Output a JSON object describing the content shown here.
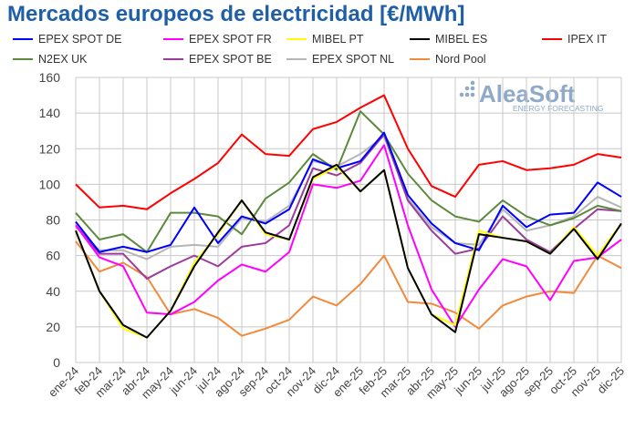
{
  "chart_data": {
    "type": "line",
    "title": "Mercados europeos de electricidad [€/MWh]",
    "watermark": "AleaSoft ENERGY FORECASTING",
    "ylim": [
      0,
      160
    ],
    "yticks": [
      0,
      20,
      40,
      60,
      80,
      100,
      120,
      140,
      160
    ],
    "grid": true,
    "legend_position": "top",
    "categories": [
      "ene-24",
      "feb-24",
      "mar-24",
      "abr-24",
      "may-24",
      "jun-24",
      "jul-24",
      "ago-24",
      "sep-24",
      "oct-24",
      "nov-24",
      "dic-24",
      "ene-25",
      "feb-25",
      "mar-25",
      "abr-25",
      "may-25",
      "jun-25",
      "jul-25",
      "ago-25",
      "sep-25",
      "oct-25",
      "nov-25",
      "dic-25"
    ],
    "series": [
      {
        "name": "EPEX SPOT DE",
        "color": "#0000ff",
        "values": [
          79,
          62,
          65,
          62,
          66,
          87,
          67,
          82,
          78,
          86,
          114,
          109,
          113,
          129,
          94,
          78,
          67,
          63,
          88,
          76,
          83,
          84,
          101,
          93
        ]
      },
      {
        "name": "EPEX SPOT FR",
        "color": "#ff00ff",
        "values": [
          77,
          59,
          54,
          28,
          27,
          34,
          46,
          55,
          51,
          62,
          100,
          98,
          102,
          122,
          77,
          41,
          20,
          41,
          58,
          54,
          35,
          57,
          59,
          69
        ]
      },
      {
        "name": "MIBEL PT",
        "color": "#ffff00",
        "values": [
          74,
          40,
          19,
          14,
          29,
          56,
          72,
          91,
          72,
          69,
          103,
          110,
          96,
          108,
          53,
          27,
          21,
          74,
          70,
          68,
          61,
          76,
          60,
          78
        ]
      },
      {
        "name": "MIBEL ES",
        "color": "#000000",
        "values": [
          74,
          40,
          21,
          14,
          29,
          54,
          73,
          91,
          73,
          69,
          104,
          111,
          96,
          108,
          53,
          27,
          17,
          72,
          70,
          68,
          61,
          75,
          58,
          78
        ]
      },
      {
        "name": "IPEX IT",
        "color": "#ff0000",
        "values": [
          100,
          87,
          88,
          86,
          95,
          103,
          112,
          128,
          117,
          116,
          131,
          135,
          143,
          150,
          120,
          99,
          93,
          111,
          113,
          108,
          109,
          111,
          117,
          115
        ]
      },
      {
        "name": "N2EX UK",
        "color": "#5b8a3c",
        "values": [
          84,
          69,
          72,
          62,
          84,
          84,
          82,
          72,
          92,
          101,
          117,
          108,
          141,
          128,
          106,
          91,
          82,
          79,
          91,
          82,
          77,
          81,
          88,
          85
        ]
      },
      {
        "name": "EPEX SPOT BE",
        "color": "#9b3b9b",
        "values": [
          77,
          61,
          61,
          47,
          54,
          60,
          54,
          65,
          67,
          77,
          109,
          105,
          112,
          128,
          91,
          74,
          61,
          64,
          82,
          69,
          62,
          75,
          86,
          85
        ]
      },
      {
        "name": "EPEX SPOT NL",
        "color": "#b5b5b5",
        "values": [
          76,
          63,
          63,
          58,
          65,
          66,
          65,
          81,
          79,
          88,
          113,
          110,
          117,
          127,
          92,
          76,
          67,
          66,
          86,
          74,
          77,
          82,
          93,
          87
        ]
      },
      {
        "name": "Nord Pool",
        "color": "#f08a3c",
        "values": [
          68,
          51,
          56,
          48,
          27,
          30,
          25,
          15,
          19,
          24,
          37,
          32,
          44,
          60,
          34,
          33,
          28,
          19,
          32,
          37,
          40,
          39,
          60,
          53
        ]
      }
    ]
  }
}
